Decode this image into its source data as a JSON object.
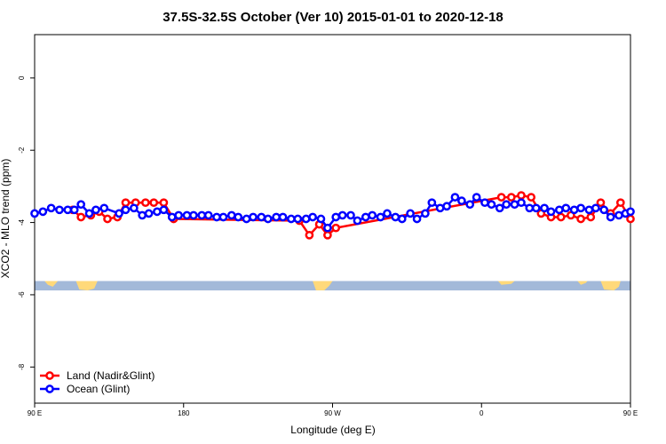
{
  "chart_data": {
    "type": "line",
    "title": "37.5S-32.5S October (Ver 10)   2015-01-01 to 2020-12-18",
    "xlabel": "Longitude (deg E)",
    "ylabel": "XCO2 - MLO trend (ppm)",
    "xlim": [
      90,
      450
    ],
    "ylim": [
      -9.0,
      1.2
    ],
    "x_ticks": [
      {
        "value": 90,
        "label": "90 E"
      },
      {
        "value": 180,
        "label": "180"
      },
      {
        "value": 270,
        "label": "90 W"
      },
      {
        "value": 360,
        "label": "0"
      },
      {
        "value": 450,
        "label": "90 E"
      },
      {
        "value": 540,
        "label": "180"
      }
    ],
    "y_ticks": [
      0,
      -2,
      -4,
      -6,
      -8
    ],
    "grid": false,
    "legend_position": "bottom-left",
    "colors": {
      "land": "#ff0000",
      "ocean": "#0000ff",
      "map_land": "#ffd97a",
      "map_ocean": "#a3b9d9"
    },
    "series": [
      {
        "name": "Land (Nadir&Glint)",
        "color": "#ff0000",
        "x": [
          113,
          118,
          124,
          129,
          134,
          140,
          145,
          151,
          157,
          162,
          168,
          174,
          250,
          256,
          262,
          267,
          272,
          372,
          378,
          384,
          390,
          396,
          402,
          408,
          414,
          420,
          426,
          432,
          438,
          444,
          450
        ],
        "y": [
          -3.65,
          -3.85,
          -3.8,
          -3.7,
          -3.9,
          -3.85,
          -3.45,
          -3.45,
          -3.45,
          -3.45,
          -3.45,
          -3.9,
          -3.95,
          -4.35,
          -4.05,
          -4.35,
          -4.15,
          -3.3,
          -3.3,
          -3.25,
          -3.3,
          -3.75,
          -3.85,
          -3.85,
          -3.8,
          -3.9,
          -3.85,
          -3.45,
          -3.75,
          -3.45,
          -3.9
        ]
      },
      {
        "name": "Ocean (Glint)",
        "color": "#0000ff",
        "x": [
          90,
          95,
          100,
          105,
          110,
          114,
          118,
          123,
          127,
          132,
          141,
          145,
          150,
          155,
          159,
          164,
          168,
          173,
          177,
          182,
          186,
          191,
          195,
          200,
          204,
          209,
          213,
          218,
          222,
          227,
          231,
          236,
          240,
          245,
          249,
          254,
          258,
          263,
          267,
          272,
          276,
          281,
          285,
          290,
          294,
          299,
          303,
          308,
          312,
          317,
          321,
          326,
          330,
          335,
          339,
          344,
          348,
          353,
          357,
          362,
          366,
          371,
          375,
          380,
          384,
          389,
          393,
          398,
          402,
          407,
          411,
          416,
          420,
          425,
          429,
          434,
          438,
          443,
          447,
          450
        ],
        "y": [
          -3.75,
          -3.7,
          -3.6,
          -3.65,
          -3.65,
          -3.65,
          -3.5,
          -3.75,
          -3.65,
          -3.6,
          -3.75,
          -3.65,
          -3.6,
          -3.8,
          -3.75,
          -3.7,
          -3.65,
          -3.85,
          -3.8,
          -3.8,
          -3.8,
          -3.8,
          -3.8,
          -3.85,
          -3.85,
          -3.8,
          -3.85,
          -3.9,
          -3.85,
          -3.85,
          -3.9,
          -3.85,
          -3.85,
          -3.9,
          -3.9,
          -3.9,
          -3.85,
          -3.9,
          -4.15,
          -3.85,
          -3.8,
          -3.8,
          -3.95,
          -3.85,
          -3.8,
          -3.85,
          -3.75,
          -3.85,
          -3.9,
          -3.75,
          -3.9,
          -3.75,
          -3.45,
          -3.6,
          -3.55,
          -3.3,
          -3.4,
          -3.5,
          -3.3,
          -3.45,
          -3.5,
          -3.6,
          -3.5,
          -3.5,
          -3.45,
          -3.6,
          -3.6,
          -3.6,
          -3.7,
          -3.65,
          -3.6,
          -3.65,
          -3.6,
          -3.65,
          -3.6,
          -3.65,
          -3.85,
          -3.8,
          -3.75,
          -3.7
        ]
      }
    ]
  }
}
